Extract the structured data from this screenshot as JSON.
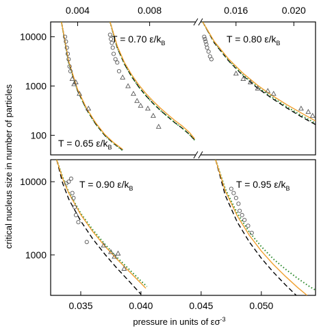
{
  "chart_data": [
    {
      "type": "line",
      "panel": "top",
      "y_scale": "log",
      "ylim": [
        40,
        20000
      ],
      "yticks": [
        100,
        1000,
        10000
      ],
      "ytick_labels": [
        "100",
        "1000",
        "10000"
      ],
      "x_axis_position": "top",
      "x_axis_broken": true,
      "x_segments": [
        {
          "xlim": [
            0.0025,
            0.0106
          ],
          "xticks": [
            0.004,
            0.008
          ],
          "xtick_labels": [
            "0.004",
            "0.008"
          ]
        },
        {
          "xlim": [
            0.0135,
            0.0215
          ],
          "xticks": [
            0.016,
            0.02
          ],
          "xtick_labels": [
            "0.016",
            "0.020"
          ]
        }
      ],
      "annotations": [
        {
          "T": "T = 0.65 ε/k",
          "sub": "B"
        },
        {
          "T": "T = 0.70 ε/k",
          "sub": "B"
        },
        {
          "T": "T = 0.80 ε/k",
          "sub": "B"
        }
      ],
      "curves": [
        {
          "style": "dashed",
          "color": "#000000",
          "segment": 0,
          "x": [
            0.0031,
            0.0035,
            0.004,
            0.0045,
            0.005,
            0.0055,
            0.006,
            0.0065
          ],
          "y": [
            20000,
            3000,
            800,
            330,
            170,
            100,
            68,
            50
          ]
        },
        {
          "style": "dotted",
          "color": "#2e8b2e",
          "segment": 0,
          "x": [
            0.0031,
            0.0035,
            0.004,
            0.0045,
            0.005,
            0.0055,
            0.006,
            0.0065
          ],
          "y": [
            20000,
            3000,
            800,
            330,
            170,
            100,
            68,
            49
          ]
        },
        {
          "style": "solid",
          "color": "#f0a030",
          "segment": 0,
          "x": [
            0.0031,
            0.0035,
            0.004,
            0.0045,
            0.005,
            0.0055,
            0.006,
            0.0065
          ],
          "y": [
            20000,
            3200,
            850,
            350,
            180,
            105,
            71,
            52
          ]
        },
        {
          "style": "dashed",
          "color": "#000000",
          "segment": 0,
          "x": [
            0.0058,
            0.0062,
            0.0066,
            0.007,
            0.0074,
            0.0078,
            0.0082,
            0.0086,
            0.009,
            0.0094,
            0.0098,
            0.0102,
            0.0105
          ],
          "y": [
            20000,
            6000,
            2800,
            1550,
            950,
            630,
            440,
            320,
            240,
            180,
            140,
            105,
            80
          ]
        },
        {
          "style": "dotted",
          "color": "#2e8b2e",
          "segment": 0,
          "x": [
            0.0058,
            0.0062,
            0.0066,
            0.007,
            0.0074,
            0.0078,
            0.0082,
            0.0086,
            0.009,
            0.0094,
            0.0098,
            0.0102,
            0.0105
          ],
          "y": [
            20000,
            6000,
            2800,
            1550,
            950,
            630,
            440,
            320,
            240,
            180,
            140,
            105,
            80
          ]
        },
        {
          "style": "solid",
          "color": "#f0a030",
          "segment": 0,
          "x": [
            0.0058,
            0.0062,
            0.0066,
            0.007,
            0.0074,
            0.0078,
            0.0082,
            0.0086,
            0.009,
            0.0094,
            0.0098,
            0.0102,
            0.0105
          ],
          "y": [
            20000,
            6500,
            3000,
            1700,
            1050,
            700,
            490,
            355,
            265,
            200,
            155,
            115,
            85
          ]
        },
        {
          "style": "dashed",
          "color": "#000000",
          "segment": 1,
          "x": [
            0.0137,
            0.0145,
            0.0155,
            0.0165,
            0.0175,
            0.0185,
            0.0195,
            0.0205,
            0.0215
          ],
          "y": [
            20000,
            7500,
            3200,
            1600,
            900,
            560,
            360,
            240,
            165
          ]
        },
        {
          "style": "dotted",
          "color": "#2e8b2e",
          "segment": 1,
          "x": [
            0.0137,
            0.0145,
            0.0155,
            0.0165,
            0.0175,
            0.0185,
            0.0195,
            0.0205,
            0.0215
          ],
          "y": [
            20000,
            7700,
            3300,
            1650,
            950,
            590,
            380,
            255,
            175
          ]
        },
        {
          "style": "solid",
          "color": "#f0a030",
          "segment": 1,
          "x": [
            0.0137,
            0.0145,
            0.0155,
            0.0165,
            0.0175,
            0.0185,
            0.0195,
            0.0205,
            0.0215
          ],
          "y": [
            20000,
            8000,
            3500,
            1800,
            1030,
            640,
            420,
            285,
            195
          ]
        }
      ],
      "points": [
        {
          "marker": "circle",
          "segment": 0,
          "x": [
            0.0033,
            0.00335,
            0.0034,
            0.00345,
            0.0035,
            0.00355,
            0.0036
          ],
          "y": [
            10000,
            8000,
            6000,
            4500,
            3500,
            2500,
            2000
          ]
        },
        {
          "marker": "triangle",
          "segment": 0,
          "x": [
            0.0037,
            0.0038,
            0.0039,
            0.0041,
            0.0046
          ],
          "y": [
            1400,
            1100,
            1200,
            700,
            350
          ]
        },
        {
          "marker": "circle",
          "segment": 0,
          "x": [
            0.0058,
            0.00585,
            0.0059,
            0.00595,
            0.006,
            0.0061,
            0.0062,
            0.0063
          ],
          "y": [
            11000,
            9000,
            7500,
            6000,
            4500,
            3500,
            3000,
            2000
          ]
        },
        {
          "marker": "triangle",
          "segment": 0,
          "x": [
            0.0065,
            0.0068,
            0.0071,
            0.0073,
            0.0075,
            0.0079,
            0.0082,
            0.0085
          ],
          "y": [
            1500,
            1000,
            700,
            500,
            400,
            350,
            250,
            150
          ]
        },
        {
          "marker": "circle",
          "segment": 1,
          "x": [
            0.0138,
            0.01385,
            0.0139,
            0.01395,
            0.014,
            0.0141,
            0.0142,
            0.0143
          ],
          "y": [
            10000,
            9000,
            8000,
            7000,
            6000,
            5000,
            4000,
            3500
          ]
        },
        {
          "marker": "triangle",
          "segment": 1,
          "x": [
            0.016,
            0.0165,
            0.017,
            0.0175,
            0.0182,
            0.0186,
            0.0205,
            0.021,
            0.0213
          ],
          "y": [
            1800,
            1400,
            1200,
            900,
            800,
            700,
            350,
            300,
            250
          ]
        }
      ]
    },
    {
      "type": "line",
      "panel": "bottom",
      "y_scale": "log",
      "ylim": [
        280,
        20000
      ],
      "yticks": [
        1000,
        10000
      ],
      "ytick_labels": [
        "1000",
        "10000"
      ],
      "xlim": [
        0.0325,
        0.0545
      ],
      "xticks": [
        0.035,
        0.04,
        0.045,
        0.05
      ],
      "xtick_labels": [
        "0.035",
        "0.040",
        "0.045",
        "0.050"
      ],
      "xlabel": "pressure in units of εσ",
      "xlabel_sup": "-3",
      "ylabel": "critical nucleus size in number of particles",
      "annotations": [
        {
          "T": "T = 0.90 ε/k",
          "sub": "B"
        },
        {
          "T": "T = 0.95 ε/k",
          "sub": "B"
        }
      ],
      "curves": [
        {
          "style": "dashed",
          "color": "#000000",
          "x": [
            0.033,
            0.0335,
            0.034,
            0.035,
            0.036,
            0.037,
            0.038,
            0.039,
            0.04
          ],
          "y": [
            20000,
            9500,
            5800,
            2900,
            1650,
            1020,
            660,
            440,
            290
          ]
        },
        {
          "style": "dotted",
          "color": "#2e8b2e",
          "x": [
            0.033,
            0.0335,
            0.034,
            0.035,
            0.036,
            0.037,
            0.038,
            0.039,
            0.04,
            0.0405
          ],
          "y": [
            20000,
            11500,
            7200,
            3700,
            2200,
            1400,
            930,
            640,
            440,
            370
          ]
        },
        {
          "style": "solid",
          "color": "#f0a030",
          "x": [
            0.033,
            0.0335,
            0.034,
            0.035,
            0.036,
            0.037,
            0.038,
            0.039,
            0.04,
            0.0404
          ],
          "y": [
            20000,
            11000,
            7000,
            3550,
            2080,
            1320,
            880,
            600,
            410,
            350
          ]
        },
        {
          "style": "dashed",
          "color": "#000000",
          "x": [
            0.0462,
            0.047,
            0.048,
            0.049,
            0.05,
            0.051,
            0.052,
            0.053
          ],
          "y": [
            20000,
            6500,
            2800,
            1500,
            900,
            580,
            390,
            270
          ]
        },
        {
          "style": "dotted",
          "color": "#2e8b2e",
          "x": [
            0.0462,
            0.047,
            0.048,
            0.049,
            0.05,
            0.051,
            0.052,
            0.053,
            0.054,
            0.0545
          ],
          "y": [
            20000,
            8000,
            3700,
            2050,
            1300,
            880,
            640,
            480,
            370,
            330
          ]
        },
        {
          "style": "solid",
          "color": "#f0a030",
          "x": [
            0.0462,
            0.047,
            0.048,
            0.049,
            0.05,
            0.051,
            0.052,
            0.053,
            0.0538
          ],
          "y": [
            20000,
            7500,
            3400,
            1850,
            1130,
            740,
            510,
            360,
            280
          ]
        }
      ],
      "points": [
        {
          "marker": "circle",
          "x": [
            0.0338,
            0.034,
            0.0342,
            0.0343,
            0.0344,
            0.0345,
            0.0346,
            0.0348,
            0.0355
          ],
          "y": [
            9500,
            10000,
            11000,
            7000,
            6000,
            4500,
            3500,
            2800,
            1500
          ]
        },
        {
          "marker": "triangle",
          "x": [
            0.0369,
            0.0375,
            0.0378,
            0.0381,
            0.0386
          ],
          "y": [
            1350,
            1100,
            950,
            1050,
            650
          ]
        },
        {
          "marker": "circle",
          "x": [
            0.0475,
            0.0477,
            0.0479,
            0.0481,
            0.0482,
            0.0484,
            0.0486,
            0.0489,
            0.0492
          ],
          "y": [
            8000,
            7000,
            6000,
            5000,
            4000,
            3500,
            3000,
            2500,
            2000
          ]
        }
      ]
    }
  ]
}
